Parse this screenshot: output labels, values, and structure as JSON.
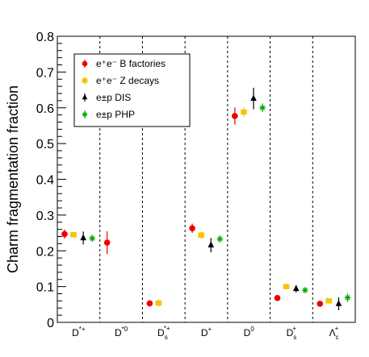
{
  "chart_data": {
    "type": "scatter",
    "title": "",
    "xlabel": "",
    "ylabel": "Charm fragmentation fraction",
    "ylim": [
      0,
      0.8
    ],
    "y_ticks": [
      "0",
      "0.1",
      "0.2",
      "0.3",
      "0.4",
      "0.5",
      "0.6",
      "0.7",
      "0.8"
    ],
    "grid": false,
    "category_separators": "dashed",
    "legend_position": "top-left",
    "categories": [
      {
        "base": "D",
        "sup": "*+",
        "sub": ""
      },
      {
        "base": "D",
        "sup": "*0",
        "sub": ""
      },
      {
        "base": "D",
        "sup": "*+",
        "sub": "s"
      },
      {
        "base": "D",
        "sup": "+",
        "sub": ""
      },
      {
        "base": "D",
        "sup": "0",
        "sub": ""
      },
      {
        "base": "D",
        "sup": "+",
        "sub": "s"
      },
      {
        "base": "Λ",
        "sup": "+",
        "sub": "c"
      }
    ],
    "series": [
      {
        "name": "e⁺e⁻ B factories",
        "color": "#ee0000",
        "marker": "circle",
        "values": [
          0.247,
          0.223,
          0.053,
          0.263,
          0.577,
          0.068,
          0.052
        ],
        "errors": [
          0.013,
          0.032,
          0.009,
          0.013,
          0.024,
          0.004,
          0.005
        ]
      },
      {
        "name": "e⁺e⁻ Z decays",
        "color": "#f5c400",
        "marker": "square",
        "values": [
          0.245,
          null,
          0.054,
          0.244,
          0.588,
          0.1,
          0.06
        ],
        "errors": [
          0.007,
          null,
          0.011,
          0.01,
          0.014,
          0.006,
          0.006
        ]
      },
      {
        "name": "e±p DIS",
        "color": "#000000",
        "marker": "triangle",
        "values": [
          0.236,
          null,
          null,
          0.216,
          0.626,
          0.094,
          0.052
        ],
        "errors": [
          0.018,
          null,
          null,
          0.02,
          0.03,
          0.01,
          0.018
        ]
      },
      {
        "name": "e±p PHP",
        "color": "#00aa00",
        "marker": "star",
        "values": [
          0.235,
          null,
          null,
          0.233,
          0.6,
          0.09,
          0.069
        ],
        "errors": [
          0.01,
          null,
          null,
          0.01,
          0.012,
          0.006,
          0.012
        ]
      }
    ]
  }
}
